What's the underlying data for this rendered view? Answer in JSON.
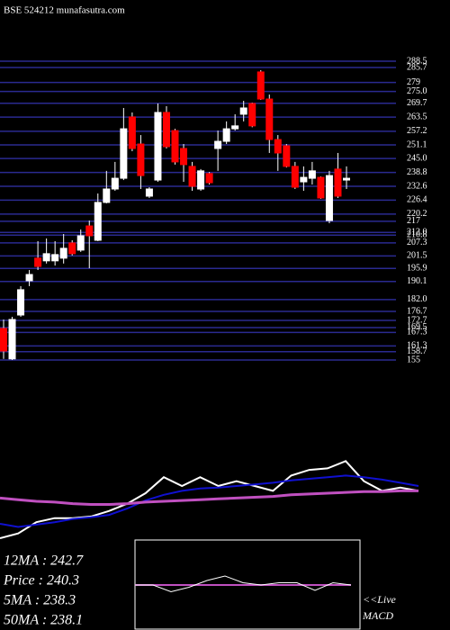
{
  "chart_data": [
    {
      "type": "candlestick",
      "title": "BSE 524212 munafasutra.com",
      "up_color": "#ffffff",
      "down_color": "#ff0000",
      "grid": true,
      "grid_color": "#2a2a90",
      "ylim": [
        155,
        288.5
      ],
      "yticks": [
        288.5,
        285.7,
        279,
        {
          "value": 275,
          "label": "275.0"
        },
        269.7,
        263.5,
        257.2,
        251.1,
        {
          "value": 245,
          "label": "245.0"
        },
        238.8,
        232.6,
        226.4,
        220.2,
        217,
        {
          "value": 212,
          "label": "212.0"
        },
        210.8,
        207.3,
        201.5,
        195.9,
        190.1,
        {
          "value": 182,
          "label": "182.0"
        },
        176.7,
        172.7,
        169.5,
        167.3,
        161.3,
        158.7,
        155
      ],
      "open": [
        169.1,
        155.5,
        175.1,
        190.4,
        200.5,
        199.3,
        199.3,
        200.5,
        207.3,
        204.1,
        214.9,
        208.5,
        225.4,
        231.4,
        236.2,
        263.6,
        251.5,
        228.2,
        235.4,
        265.6,
        257.5,
        249.5,
        241.5,
        231.4,
        238.3,
        249.5,
        252.7,
        258.3,
        264.8,
        269.6,
        283.7,
        271.6,
        253.5,
        250.7,
        241.5,
        234.6,
        236.2,
        236.6,
        217.3,
        240.3,
        235.4
      ],
      "high": [
        173.1,
        174.3,
        188.0,
        195.2,
        208.1,
        209.3,
        208.1,
        211.3,
        208.5,
        213.3,
        217.3,
        229.4,
        239.5,
        243.5,
        267.6,
        265.6,
        255.5,
        232.2,
        269.6,
        268.4,
        258.3,
        251.5,
        243.5,
        240.3,
        239.0,
        257.5,
        261.6,
        264.8,
        270.8,
        270.0,
        284.5,
        273.6,
        255.5,
        251.5,
        243.5,
        241.5,
        243.5,
        237.0,
        239.5,
        247.5,
        241.5
      ],
      "low": [
        155.5,
        155.0,
        174.3,
        188.0,
        195.2,
        198.1,
        197.2,
        198.1,
        201.7,
        203.3,
        196.0,
        208.1,
        225.0,
        230.6,
        235.4,
        248.3,
        231.4,
        227.4,
        234.6,
        249.5,
        242.3,
        234.6,
        230.6,
        230.6,
        233.4,
        239.5,
        251.5,
        257.5,
        261.6,
        259.0,
        271.2,
        247.5,
        239.5,
        241.0,
        231.4,
        230.6,
        233.4,
        227.0,
        216.1,
        227.4,
        231.4
      ],
      "close": [
        159.0,
        173.1,
        186.4,
        193.2,
        196.8,
        202.5,
        202.1,
        204.9,
        202.5,
        210.5,
        210.5,
        225.4,
        231.4,
        236.2,
        258.3,
        249.5,
        237.4,
        231.4,
        265.6,
        250.3,
        243.5,
        242.3,
        232.6,
        239.5,
        234.2,
        252.7,
        258.3,
        259.6,
        267.6,
        259.6,
        271.6,
        253.5,
        247.5,
        241.5,
        232.2,
        236.6,
        239.5,
        227.4,
        237.4,
        228.2,
        236.2
      ],
      "annotations": [
        "12MA : 242.7",
        "Price   : 240.3",
        "5MA : 238.3",
        "50MA : 238.1",
        "<<Live",
        "MACD"
      ]
    },
    {
      "type": "line",
      "ylim": [
        150,
        290
      ],
      "series": [
        {
          "color": "#ffffff",
          "width": 2,
          "values": [
            169,
            175,
            189,
            194,
            194,
            196,
            203,
            212,
            225,
            245,
            234,
            245,
            234,
            240,
            234,
            228,
            247,
            254,
            256,
            265,
            240,
            228,
            232,
            228
          ]
        },
        {
          "color": "#1010d0",
          "width": 2,
          "values": [
            187,
            183,
            186,
            189,
            193,
            195,
            198,
            206,
            216,
            223,
            228,
            231,
            232,
            234,
            236,
            238,
            241,
            243,
            245,
            247,
            245,
            242,
            238,
            234
          ]
        },
        {
          "color": "#c050c0",
          "width": 3,
          "values": [
            219,
            217,
            215,
            214,
            212,
            211,
            211,
            212,
            214,
            215,
            216,
            217,
            218,
            219,
            220,
            221,
            223,
            224,
            225,
            226,
            227,
            227,
            228,
            228
          ]
        }
      ]
    },
    {
      "type": "line",
      "ylim": [
        -5,
        5
      ],
      "series": [
        {
          "color": "#c050c0",
          "width": 2,
          "values": [
            0,
            0,
            0,
            0,
            0,
            0,
            0,
            0,
            0,
            0,
            0,
            0,
            0
          ]
        },
        {
          "color": "#ffffff",
          "width": 1,
          "values": [
            0,
            0,
            -1.5,
            -0.5,
            1,
            2,
            0.5,
            0,
            0.5,
            0.5,
            -1.2,
            0.5,
            0
          ]
        }
      ]
    }
  ]
}
